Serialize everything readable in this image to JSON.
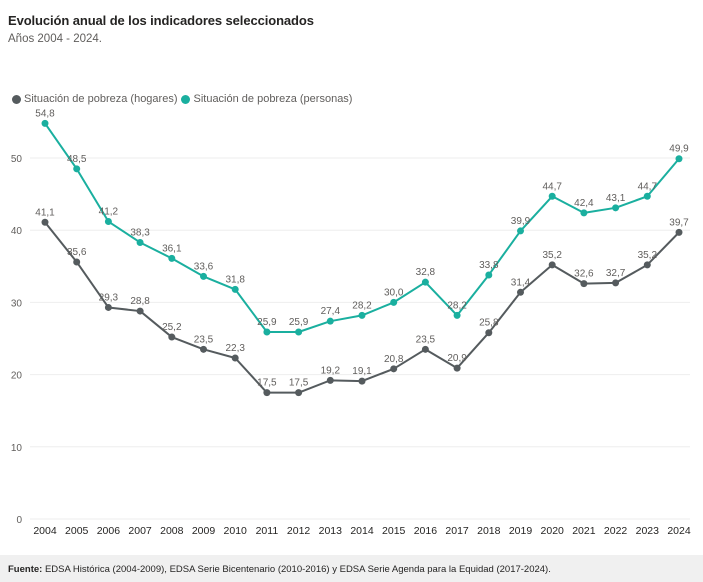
{
  "header": {
    "title": "Evolución anual de los indicadores seleccionados",
    "subtitle": "Años 2004 - 2024."
  },
  "footer": {
    "label": "Fuente:",
    "text": " EDSA Histórica (2004-2009), EDSA Serie Bicentenario (2010-2016) y EDSA Serie Agenda para la Equidad (2017-2024)."
  },
  "chart_data": {
    "type": "line",
    "title": "Evolución anual de los indicadores seleccionados",
    "subtitle": "Años 2004 - 2024.",
    "xlabel": "",
    "ylabel": "",
    "x": [
      "2004",
      "2005",
      "2006",
      "2007",
      "2008",
      "2009",
      "2010",
      "2011",
      "2012",
      "2013",
      "2014",
      "2015",
      "2016",
      "2017",
      "2018",
      "2019",
      "2020",
      "2021",
      "2022",
      "2023",
      "2024"
    ],
    "ylim": [
      0,
      55
    ],
    "yticks": [
      0,
      10,
      20,
      30,
      40,
      50
    ],
    "grid": true,
    "legend_position": "top-left",
    "series": [
      {
        "name": "Situación de pobreza (hogares)",
        "color": "#555b5e",
        "values": [
          41.1,
          35.6,
          29.3,
          28.8,
          25.2,
          23.5,
          22.3,
          17.5,
          17.5,
          19.2,
          19.1,
          20.8,
          23.5,
          20.9,
          25.8,
          31.4,
          35.2,
          32.6,
          32.7,
          35.2,
          39.7
        ],
        "labels": [
          "41,1",
          "35,6",
          "29,3",
          "28,8",
          "25,2",
          "23,5",
          "22,3",
          "17,5",
          "17,5",
          "19,2",
          "19,1",
          "20,8",
          "23,5",
          "20,9",
          "25,8",
          "31,4",
          "35,2",
          "32,6",
          "32,7",
          "35,2",
          "39,7"
        ]
      },
      {
        "name": "Situación de pobreza (personas)",
        "color": "#1aaf9f",
        "values": [
          54.8,
          48.5,
          41.2,
          38.3,
          36.1,
          33.6,
          31.8,
          25.9,
          25.9,
          27.4,
          28.2,
          30.0,
          32.8,
          28.2,
          33.8,
          39.9,
          44.7,
          42.4,
          43.1,
          44.7,
          49.9
        ],
        "labels": [
          "54,8",
          "48,5",
          "41,2",
          "38,3",
          "36,1",
          "33,6",
          "31,8",
          "25,9",
          "25,9",
          "27,4",
          "28,2",
          "30,0",
          "32,8",
          "28,2",
          "33,8",
          "39,9",
          "44,7",
          "42,4",
          "43,1",
          "44,7",
          "49,9"
        ]
      }
    ]
  }
}
